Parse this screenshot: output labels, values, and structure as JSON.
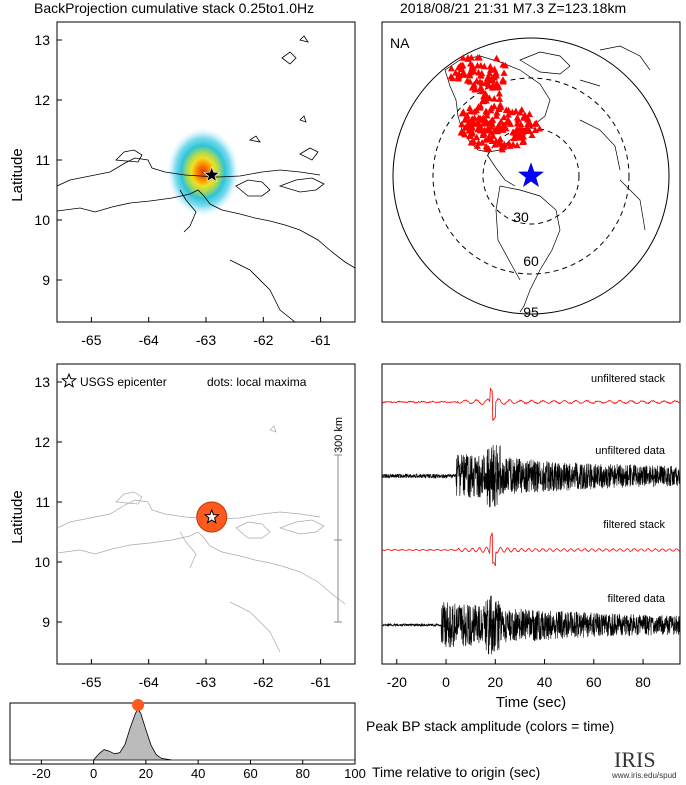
{
  "header": {
    "left_title": "BackProjection cumulative stack 0.25to1.0Hz",
    "right_title": "2018/08/21 21:31   M7.3  Z=123.18km"
  },
  "map_top": {
    "ylabel": "Latitude",
    "xticks": [
      "-65",
      "-64",
      "-63",
      "-62",
      "-61"
    ],
    "yticks": [
      "13",
      "12",
      "11",
      "10",
      "9"
    ],
    "epicenter": {
      "lon": -62.9,
      "lat": 10.75
    }
  },
  "globe": {
    "label": "NA",
    "ring_labels": [
      "30",
      "60",
      "95"
    ],
    "station_color": "#ff0000",
    "epicenter_color": "#0000ff"
  },
  "map_bottom": {
    "ylabel": "Latitude",
    "legend_star": "USGS epicenter",
    "legend_dots": "dots: local maxima",
    "scale_label": "300 km",
    "xticks": [
      "-65",
      "-64",
      "-63",
      "-62",
      "-61"
    ],
    "yticks": [
      "13",
      "12",
      "11",
      "10",
      "9"
    ],
    "maxima_color": "#ff5a1e"
  },
  "traces": {
    "labels": [
      "unfiltered stack",
      "unfiltered data",
      "filtered stack",
      "filtered data"
    ],
    "xlabel": "Time (sec)",
    "xticks": [
      "-20",
      "0",
      "20",
      "40",
      "60",
      "80"
    ],
    "stack_color": "#ff0000",
    "data_color": "#000000"
  },
  "amplitude": {
    "caption": "Peak BP stack amplitude (colors = time)",
    "xlabel": "Time relative to origin (sec)",
    "xticks": [
      "-20",
      "0",
      "20",
      "40",
      "60",
      "80",
      "100"
    ],
    "peak_color": "#ff5a1e"
  },
  "logo": {
    "text": "IRIS",
    "url": "www.iris.edu/spud"
  },
  "chart_data": [
    {
      "type": "heatmap",
      "title": "BackProjection cumulative stack 0.25to1.0Hz",
      "ylabel": "Latitude",
      "xlim": [
        -65.6,
        -60.4
      ],
      "ylim": [
        8.3,
        13.3
      ],
      "hotspot": {
        "lon": -62.9,
        "lat": 10.75
      },
      "colormap": [
        "#d8f2fa",
        "#7fdcf0",
        "#2fc4d8",
        "#9fd860",
        "#f0e020",
        "#ff8a00",
        "#d83800"
      ]
    },
    {
      "type": "scatter",
      "title": "NA",
      "series": [
        {
          "name": "stations",
          "marker": "triangle"
        },
        {
          "name": "epicenter",
          "marker": "star"
        }
      ],
      "rings_deg": [
        30,
        60,
        95
      ]
    },
    {
      "type": "scatter",
      "ylabel": "Latitude",
      "xlim": [
        -65.6,
        -60.4
      ],
      "ylim": [
        8.3,
        13.3
      ],
      "series": [
        {
          "name": "USGS epicenter",
          "x": [
            -62.9
          ],
          "y": [
            10.75
          ]
        },
        {
          "name": "local maxima",
          "x": [
            -62.9
          ],
          "y": [
            10.75
          ]
        }
      ]
    },
    {
      "type": "line",
      "xlabel": "Time (sec)",
      "xlim": [
        -26,
        95
      ],
      "series": [
        {
          "name": "unfiltered stack",
          "onset": 5,
          "peak_time": 19
        },
        {
          "name": "unfiltered data",
          "onset": 4,
          "peak_time": 19
        },
        {
          "name": "filtered stack",
          "onset": 5,
          "peak_time": 19
        },
        {
          "name": "filtered data",
          "onset": -2,
          "peak_time": 19
        }
      ]
    },
    {
      "type": "area",
      "xlabel": "Time relative to origin (sec)",
      "xlim": [
        -32,
        100
      ],
      "x": [
        -32,
        0,
        2,
        4,
        6,
        8,
        10,
        12,
        14,
        16,
        17,
        18,
        20,
        22,
        24,
        26,
        30,
        35,
        100
      ],
      "y": [
        0,
        0,
        0.12,
        0.2,
        0.17,
        0.12,
        0.14,
        0.3,
        0.62,
        0.9,
        0.97,
        0.9,
        0.58,
        0.28,
        0.1,
        0.03,
        0.0,
        0.0,
        0
      ],
      "peak": {
        "x": 17,
        "y": 1.0
      }
    }
  ]
}
